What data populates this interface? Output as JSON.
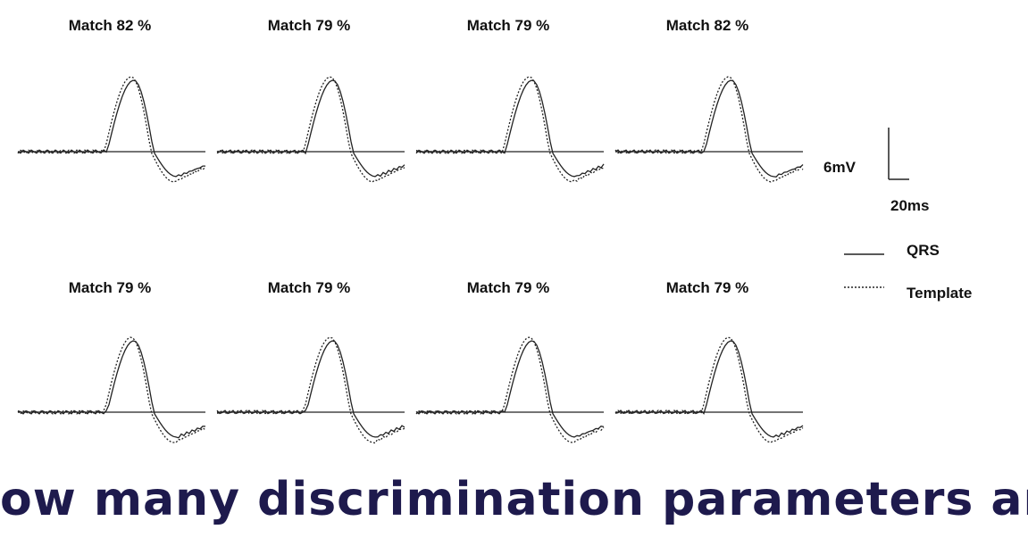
{
  "panels": [
    {
      "label": "Match 82 %"
    },
    {
      "label": "Match 79 %"
    },
    {
      "label": "Match 79 %"
    },
    {
      "label": "Match 82 %"
    },
    {
      "label": "Match 79 %"
    },
    {
      "label": "Match 79 %"
    },
    {
      "label": "Match 79 %"
    },
    {
      "label": "Match 79 %"
    }
  ],
  "scale": {
    "voltage": "6mV",
    "time": "20ms"
  },
  "legend": {
    "items": [
      "QRS",
      "Template"
    ]
  },
  "footer": {
    "heading": "ow many discrimination parameters ar"
  }
}
